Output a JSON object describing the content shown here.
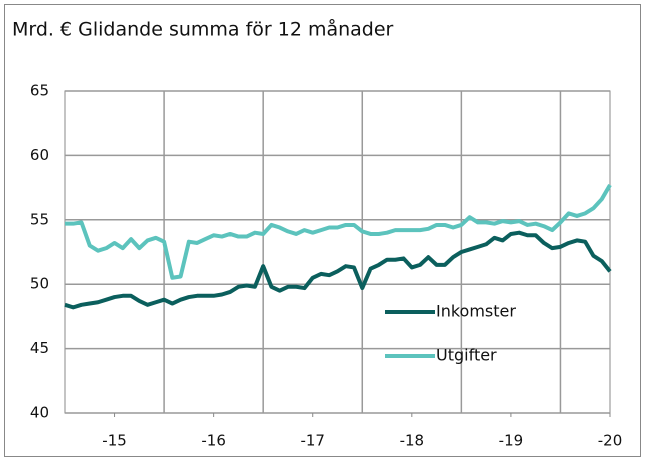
{
  "chart_data": {
    "type": "line",
    "title": "Mrd. € Glidande summa för 12 månader",
    "x": [
      0,
      1,
      2,
      3,
      4,
      5,
      6,
      7,
      8,
      9,
      10,
      11,
      12,
      13,
      14,
      15,
      16,
      17,
      18,
      19,
      20,
      21,
      22,
      23,
      24,
      25,
      26,
      27,
      28,
      29,
      30,
      31,
      32,
      33,
      34,
      35,
      36,
      37,
      38,
      39,
      40,
      41,
      42,
      43,
      44,
      45,
      46,
      47,
      48,
      49,
      50,
      51,
      52,
      53,
      54,
      55,
      56,
      57,
      58,
      59,
      60,
      61,
      62,
      63,
      64,
      65,
      66
    ],
    "series": [
      {
        "name": "Inkomster",
        "color": "#0b5f5d",
        "values": [
          48.4,
          48.2,
          48.4,
          48.5,
          48.6,
          48.8,
          49.0,
          49.1,
          49.1,
          48.7,
          48.4,
          48.6,
          48.8,
          48.5,
          48.8,
          49.0,
          49.1,
          49.1,
          49.1,
          49.2,
          49.4,
          49.8,
          49.9,
          49.8,
          51.4,
          49.8,
          49.5,
          49.8,
          49.8,
          49.7,
          50.5,
          50.8,
          50.7,
          51.0,
          51.4,
          51.3,
          49.7,
          51.2,
          51.5,
          51.9,
          51.9,
          52.0,
          51.3,
          51.5,
          52.1,
          51.5,
          51.5,
          52.1,
          52.5,
          52.7,
          52.9,
          53.1,
          53.6,
          53.4,
          53.9,
          54.0,
          53.8,
          53.8,
          53.2,
          52.8,
          52.9,
          53.2,
          53.4,
          53.3,
          52.2,
          51.8,
          51.0
        ]
      },
      {
        "name": "Utgifter",
        "color": "#5cc3bd",
        "values": [
          54.7,
          54.7,
          54.8,
          53.0,
          52.6,
          52.8,
          53.2,
          52.8,
          53.5,
          52.8,
          53.4,
          53.6,
          53.3,
          50.5,
          50.6,
          53.3,
          53.2,
          53.5,
          53.8,
          53.7,
          53.9,
          53.7,
          53.7,
          54.0,
          53.9,
          54.6,
          54.4,
          54.1,
          53.9,
          54.2,
          54.0,
          54.2,
          54.4,
          54.4,
          54.6,
          54.6,
          54.1,
          53.9,
          53.9,
          54.0,
          54.2,
          54.2,
          54.2,
          54.2,
          54.3,
          54.6,
          54.6,
          54.4,
          54.6,
          55.2,
          54.8,
          54.8,
          54.7,
          54.9,
          54.8,
          54.9,
          54.6,
          54.7,
          54.5,
          54.2,
          54.8,
          55.5,
          55.3,
          55.5,
          55.9,
          56.6,
          57.7
        ]
      }
    ],
    "xlim": [
      0,
      66
    ],
    "xticks": [
      {
        "value": 6,
        "label": "-15"
      },
      {
        "value": 18,
        "label": "-16"
      },
      {
        "value": 30,
        "label": "-17"
      },
      {
        "value": 42,
        "label": "-18"
      },
      {
        "value": 54,
        "label": "-19"
      },
      {
        "value": 66,
        "label": "-20"
      }
    ],
    "xgrid": [
      12,
      24,
      36,
      48,
      60
    ],
    "ylim": [
      40,
      65
    ],
    "yticks": [
      40,
      45,
      50,
      55,
      60,
      65
    ],
    "grid": true
  }
}
